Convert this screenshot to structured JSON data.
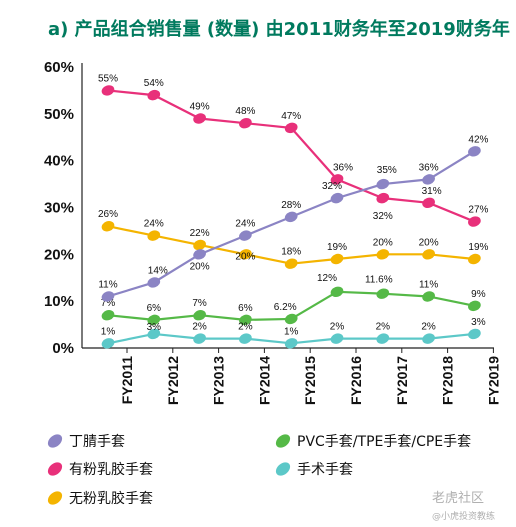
{
  "chart_data": {
    "type": "line",
    "title": "a) 产品组合销售量 (数量) 由2011财务年至2019财务年",
    "categories": [
      "FY2011",
      "FY2012",
      "FY2013",
      "FY2014",
      "FY2015",
      "FY2016",
      "FY2017",
      "FY2018",
      "FY2019"
    ],
    "ylim": [
      0,
      60
    ],
    "yticks": [
      "0%",
      "10%",
      "20%",
      "30%",
      "40%",
      "50%",
      "60%"
    ],
    "grid": false,
    "legend_position": "bottom",
    "series": [
      {
        "name": "丁腈手套",
        "color": "#8b84c4",
        "values": [
          11,
          14,
          20,
          24,
          28,
          32,
          35,
          36,
          42
        ],
        "labels": [
          "11%",
          "14%",
          "20%",
          "24%",
          "28%",
          "32%",
          "35%",
          "36%",
          "42%"
        ]
      },
      {
        "name": "有粉乳胶手套",
        "color": "#e8307a",
        "values": [
          55,
          54,
          49,
          48,
          47,
          36,
          32,
          31,
          27
        ],
        "labels": [
          "55%",
          "54%",
          "49%",
          "48%",
          "47%",
          "36%",
          "32%",
          "31%",
          "27%"
        ]
      },
      {
        "name": "无粉乳胶手套",
        "color": "#f4b400",
        "values": [
          26,
          24,
          22,
          20,
          18,
          19,
          20,
          20,
          19
        ],
        "labels": [
          "26%",
          "24%",
          "22%",
          "20%",
          "18%",
          "19%",
          "20%",
          "20%",
          "19%"
        ]
      },
      {
        "name": "PVC手套/TPE手套/CPE手套",
        "color": "#55b947",
        "values": [
          7,
          6,
          7,
          6,
          6.2,
          12,
          11.6,
          11,
          9
        ],
        "labels": [
          "7%",
          "6%",
          "7%",
          "6%",
          "6.2%",
          "12%",
          "11.6%",
          "11%",
          "9%"
        ]
      },
      {
        "name": "手术手套",
        "color": "#5cc8c8",
        "values": [
          1,
          3,
          2,
          2,
          1,
          2,
          2,
          2,
          3
        ],
        "labels": [
          "1%",
          "3%",
          "2%",
          "2%",
          "1%",
          "2%",
          "2%",
          "2%",
          "3%"
        ]
      }
    ]
  },
  "watermark": {
    "line1": "老虎社区",
    "line2": "@小虎投资教练"
  }
}
